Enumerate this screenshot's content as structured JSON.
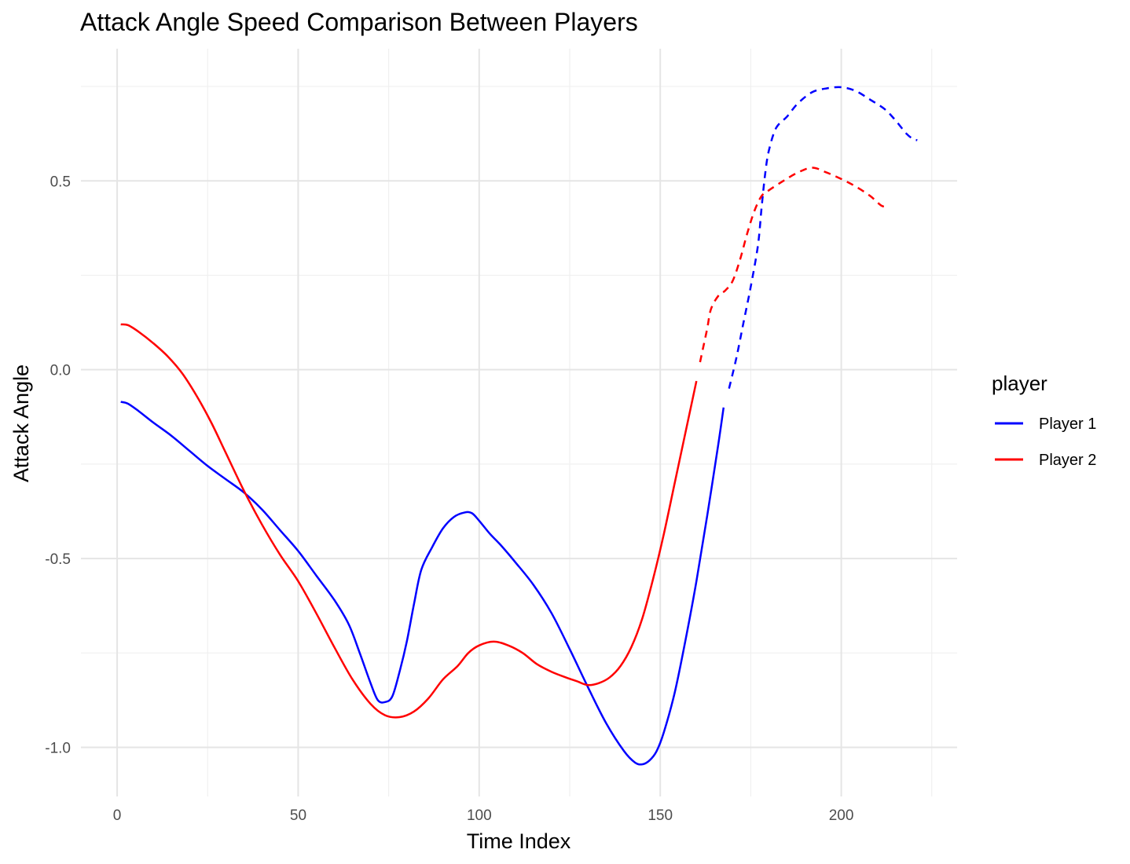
{
  "chart_data": {
    "type": "line",
    "title": "Attack Angle Speed Comparison Between Players",
    "xlabel": "Time Index",
    "ylabel": "Attack Angle",
    "xlim": [
      -10,
      232
    ],
    "ylim": [
      -1.13,
      0.85
    ],
    "x_ticks": [
      0,
      50,
      100,
      150,
      200
    ],
    "y_ticks": [
      -1.0,
      -0.5,
      0.0,
      0.5
    ],
    "x_tick_labels": [
      "0",
      "50",
      "100",
      "150",
      "200"
    ],
    "y_tick_labels": [
      "-1.0",
      "-0.5",
      "0.0",
      "0.5"
    ],
    "grid": true,
    "legend": {
      "title": "player",
      "placement": "right"
    },
    "series": [
      {
        "name": "Player 1",
        "color": "#0000ff",
        "line_style": "solid",
        "points": [
          [
            1,
            -0.085
          ],
          [
            3,
            -0.09
          ],
          [
            6,
            -0.11
          ],
          [
            10,
            -0.14
          ],
          [
            15,
            -0.175
          ],
          [
            20,
            -0.215
          ],
          [
            25,
            -0.255
          ],
          [
            30,
            -0.29
          ],
          [
            35,
            -0.325
          ],
          [
            40,
            -0.37
          ],
          [
            45,
            -0.425
          ],
          [
            50,
            -0.48
          ],
          [
            55,
            -0.545
          ],
          [
            60,
            -0.61
          ],
          [
            64,
            -0.675
          ],
          [
            67,
            -0.75
          ],
          [
            70,
            -0.83
          ],
          [
            72,
            -0.875
          ],
          [
            74,
            -0.88
          ],
          [
            76,
            -0.865
          ],
          [
            78,
            -0.8
          ],
          [
            80,
            -0.72
          ],
          [
            82,
            -0.62
          ],
          [
            84,
            -0.53
          ],
          [
            87,
            -0.47
          ],
          [
            90,
            -0.42
          ],
          [
            93,
            -0.39
          ],
          [
            96,
            -0.378
          ],
          [
            98,
            -0.38
          ],
          [
            100,
            -0.4
          ],
          [
            103,
            -0.435
          ],
          [
            106,
            -0.465
          ],
          [
            110,
            -0.51
          ],
          [
            115,
            -0.57
          ],
          [
            120,
            -0.645
          ],
          [
            125,
            -0.74
          ],
          [
            130,
            -0.84
          ],
          [
            135,
            -0.935
          ],
          [
            140,
            -1.01
          ],
          [
            143,
            -1.04
          ],
          [
            145,
            -1.045
          ],
          [
            147,
            -1.035
          ],
          [
            149,
            -1.01
          ],
          [
            151,
            -0.96
          ],
          [
            154,
            -0.855
          ],
          [
            157,
            -0.715
          ],
          [
            160,
            -0.56
          ],
          [
            163,
            -0.385
          ],
          [
            166,
            -0.2
          ],
          [
            167.5,
            -0.1
          ]
        ]
      },
      {
        "name": "",
        "color": "#0000ff",
        "line_style": "dashed",
        "points": [
          [
            169,
            -0.05
          ],
          [
            171,
            0.03
          ],
          [
            173,
            0.125
          ],
          [
            175,
            0.22
          ],
          [
            177,
            0.33
          ],
          [
            178,
            0.43
          ],
          [
            179,
            0.52
          ],
          [
            180,
            0.58
          ],
          [
            182,
            0.64
          ],
          [
            185,
            0.67
          ],
          [
            188,
            0.705
          ],
          [
            192,
            0.735
          ],
          [
            196,
            0.745
          ],
          [
            200,
            0.748
          ],
          [
            204,
            0.738
          ],
          [
            208,
            0.715
          ],
          [
            212,
            0.69
          ],
          [
            215,
            0.66
          ],
          [
            218,
            0.625
          ],
          [
            220,
            0.61
          ],
          [
            221,
            0.608
          ]
        ]
      },
      {
        "name": "Player 2",
        "color": "#ff0000",
        "line_style": "solid",
        "points": [
          [
            1,
            0.12
          ],
          [
            3,
            0.118
          ],
          [
            6,
            0.1
          ],
          [
            10,
            0.07
          ],
          [
            14,
            0.035
          ],
          [
            18,
            -0.01
          ],
          [
            22,
            -0.07
          ],
          [
            26,
            -0.14
          ],
          [
            30,
            -0.22
          ],
          [
            35,
            -0.32
          ],
          [
            40,
            -0.41
          ],
          [
            45,
            -0.49
          ],
          [
            50,
            -0.56
          ],
          [
            55,
            -0.645
          ],
          [
            60,
            -0.735
          ],
          [
            65,
            -0.82
          ],
          [
            70,
            -0.885
          ],
          [
            74,
            -0.915
          ],
          [
            78,
            -0.92
          ],
          [
            82,
            -0.905
          ],
          [
            86,
            -0.87
          ],
          [
            90,
            -0.82
          ],
          [
            94,
            -0.785
          ],
          [
            97,
            -0.75
          ],
          [
            100,
            -0.73
          ],
          [
            104,
            -0.72
          ],
          [
            108,
            -0.73
          ],
          [
            112,
            -0.75
          ],
          [
            116,
            -0.78
          ],
          [
            120,
            -0.8
          ],
          [
            124,
            -0.815
          ],
          [
            127,
            -0.825
          ],
          [
            130,
            -0.835
          ],
          [
            133,
            -0.83
          ],
          [
            136,
            -0.815
          ],
          [
            139,
            -0.785
          ],
          [
            142,
            -0.735
          ],
          [
            145,
            -0.66
          ],
          [
            148,
            -0.555
          ],
          [
            151,
            -0.435
          ],
          [
            154,
            -0.3
          ],
          [
            157,
            -0.165
          ],
          [
            159,
            -0.075
          ],
          [
            160,
            -0.03
          ]
        ]
      },
      {
        "name": "",
        "color": "#ff0000",
        "line_style": "dashed",
        "points": [
          [
            161,
            0.02
          ],
          [
            162,
            0.065
          ],
          [
            163,
            0.11
          ],
          [
            164,
            0.16
          ],
          [
            166,
            0.195
          ],
          [
            168,
            0.21
          ],
          [
            170,
            0.235
          ],
          [
            172,
            0.29
          ],
          [
            174,
            0.36
          ],
          [
            176,
            0.42
          ],
          [
            178,
            0.46
          ],
          [
            180,
            0.475
          ],
          [
            184,
            0.5
          ],
          [
            188,
            0.522
          ],
          [
            192,
            0.535
          ],
          [
            196,
            0.522
          ],
          [
            200,
            0.505
          ],
          [
            204,
            0.485
          ],
          [
            208,
            0.46
          ],
          [
            211,
            0.435
          ],
          [
            213,
            0.43
          ]
        ]
      }
    ]
  }
}
